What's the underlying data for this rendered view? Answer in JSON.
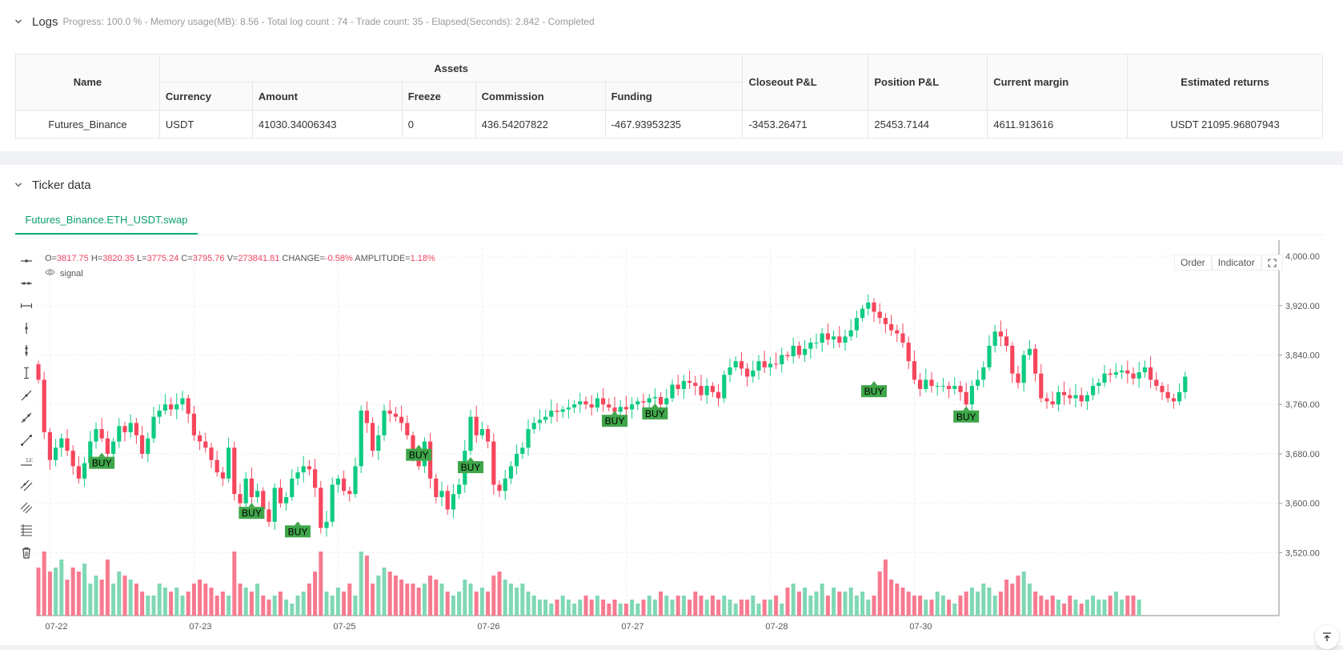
{
  "logs": {
    "title": "Logs",
    "status": "Progress: 100.0 %  - Memory usage(MB): 8.56 - Total log count : 74 -  Trade count:  35 - Elapsed(Seconds): 2.842 - Completed"
  },
  "assets_table": {
    "headers": {
      "name": "Name",
      "assets": "Assets",
      "currency": "Currency",
      "amount": "Amount",
      "freeze": "Freeze",
      "commission": "Commission",
      "funding": "Funding",
      "closeout": "Closeout P&L",
      "position": "Position P&L",
      "margin": "Current margin",
      "returns": "Estimated returns"
    },
    "row": {
      "name": "Futures_Binance",
      "currency": "USDT",
      "amount": "41030.34006343",
      "freeze": "0",
      "commission": "436.54207822",
      "funding": "-467.93953235",
      "closeout": "-3453.26471",
      "position": "25453.7144",
      "margin": "4611.913616",
      "returns": "USDT 21095.96807943"
    }
  },
  "ticker": {
    "title": "Ticker data",
    "tab": "Futures_Binance.ETH_USDT.swap",
    "ohlc": {
      "o_label": "O=",
      "o": "3817.75",
      "h_label": "H=",
      "h": "3820.35",
      "l_label": "L=",
      "l": "3775.24",
      "c_label": "C=",
      "c": "3795.76",
      "v_label": "V=",
      "v": "273841.81",
      "change_label": "CHANGE=",
      "change": "-0.58%",
      "amp_label": "AMPLITUDE=",
      "amp": "1.18%"
    },
    "signal_label": "signal",
    "buttons": {
      "order": "Order",
      "indicator": "Indicator"
    }
  },
  "chart_data": {
    "type": "candlestick",
    "y_ticks": [
      "4,000.00",
      "3,920.00",
      "3,840.00",
      "3,760.00",
      "3,680.00",
      "3,600.00",
      "3,520.00"
    ],
    "y_tick_values": [
      4000,
      3920,
      3840,
      3760,
      3680,
      3600,
      3520
    ],
    "ylim": [
      3470,
      4013
    ],
    "x_ticks": [
      "07-22",
      "07-23",
      "07-25",
      "07-26",
      "07-27",
      "07-28",
      "07-30"
    ],
    "x_tick_index": [
      2,
      27,
      52,
      77,
      102,
      127,
      152
    ],
    "up_color": "#0ecb81",
    "down_color": "#f6465d",
    "buy_color": "#3fa64a",
    "buy_label": "BUY",
    "buy_markers": [
      {
        "index": 11,
        "price": 3670
      },
      {
        "index": 37,
        "price": 3589
      },
      {
        "index": 45,
        "price": 3559
      },
      {
        "index": 66,
        "price": 3683
      },
      {
        "index": 75,
        "price": 3663
      },
      {
        "index": 100,
        "price": 3738
      },
      {
        "index": 107,
        "price": 3750
      },
      {
        "index": 145,
        "price": 3786
      },
      {
        "index": 161,
        "price": 3745
      }
    ],
    "closes": [
      3800,
      3715,
      3670,
      3690,
      3705,
      3685,
      3660,
      3640,
      3665,
      3700,
      3720,
      3705,
      3680,
      3700,
      3725,
      3715,
      3730,
      3710,
      3680,
      3705,
      3740,
      3750,
      3760,
      3752,
      3760,
      3770,
      3745,
      3710,
      3700,
      3690,
      3670,
      3650,
      3640,
      3690,
      3615,
      3600,
      3640,
      3610,
      3620,
      3590,
      3570,
      3625,
      3600,
      3610,
      3640,
      3650,
      3660,
      3655,
      3625,
      3560,
      3570,
      3630,
      3640,
      3620,
      3615,
      3660,
      3750,
      3730,
      3685,
      3710,
      3750,
      3745,
      3740,
      3730,
      3710,
      3680,
      3660,
      3700,
      3640,
      3610,
      3620,
      3590,
      3615,
      3630,
      3685,
      3740,
      3710,
      3720,
      3700,
      3630,
      3620,
      3640,
      3660,
      3680,
      3690,
      3720,
      3730,
      3735,
      3740,
      3750,
      3748,
      3752,
      3755,
      3760,
      3765,
      3760,
      3755,
      3770,
      3760,
      3755,
      3748,
      3756,
      3752,
      3760,
      3765,
      3763,
      3770,
      3772,
      3760,
      3770,
      3792,
      3785,
      3798,
      3795,
      3790,
      3775,
      3790,
      3780,
      3770,
      3808,
      3820,
      3830,
      3818,
      3805,
      3815,
      3830,
      3820,
      3826,
      3825,
      3840,
      3838,
      3855,
      3840,
      3850,
      3860,
      3860,
      3875,
      3865,
      3870,
      3860,
      3870,
      3880,
      3900,
      3915,
      3925,
      3910,
      3900,
      3890,
      3880,
      3875,
      3860,
      3830,
      3800,
      3785,
      3800,
      3790,
      3790,
      3790,
      3785,
      3790,
      3780,
      3760,
      3790,
      3800,
      3820,
      3855,
      3878,
      3870,
      3855,
      3810,
      3795,
      3840,
      3850,
      3810,
      3770,
      3765,
      3760,
      3780,
      3775,
      3770,
      3775,
      3765,
      3775,
      3790,
      3795,
      3810,
      3808,
      3812,
      3815,
      3810,
      3802,
      3812,
      3820,
      3800,
      3790,
      3780,
      3770,
      3765,
      3780,
      3805
    ],
    "volumes": [
      60,
      80,
      55,
      60,
      70,
      45,
      60,
      55,
      65,
      40,
      50,
      45,
      70,
      40,
      55,
      50,
      45,
      40,
      30,
      25,
      25,
      40,
      35,
      30,
      35,
      25,
      30,
      40,
      45,
      40,
      35,
      25,
      30,
      25,
      80,
      40,
      35,
      30,
      40,
      25,
      20,
      25,
      30,
      20,
      15,
      25,
      30,
      40,
      55,
      80,
      30,
      25,
      35,
      30,
      40,
      25,
      80,
      75,
      40,
      50,
      60,
      55,
      50,
      45,
      40,
      40,
      35,
      40,
      50,
      45,
      40,
      30,
      25,
      30,
      45,
      40,
      30,
      35,
      30,
      50,
      55,
      45,
      40,
      35,
      40,
      30,
      25,
      20,
      20,
      15,
      20,
      25,
      20,
      15,
      20,
      25,
      20,
      25,
      20,
      15,
      20,
      15,
      15,
      20,
      15,
      20,
      25,
      20,
      30,
      25,
      20,
      25,
      25,
      20,
      30,
      25,
      20,
      25,
      20,
      25,
      20,
      15,
      20,
      20,
      25,
      15,
      20,
      20,
      25,
      15,
      35,
      40,
      30,
      35,
      25,
      30,
      40,
      25,
      35,
      30,
      30,
      35,
      25,
      30,
      20,
      25,
      55,
      70,
      45,
      40,
      35,
      30,
      25,
      25,
      20,
      20,
      30,
      25,
      20,
      15,
      25,
      30,
      35,
      30,
      40,
      35,
      25,
      30,
      45,
      40,
      50,
      55,
      40,
      30,
      25,
      20,
      25,
      20,
      15,
      25,
      20,
      15,
      20,
      25,
      20,
      20,
      25,
      30,
      20,
      25,
      25,
      20
    ]
  }
}
